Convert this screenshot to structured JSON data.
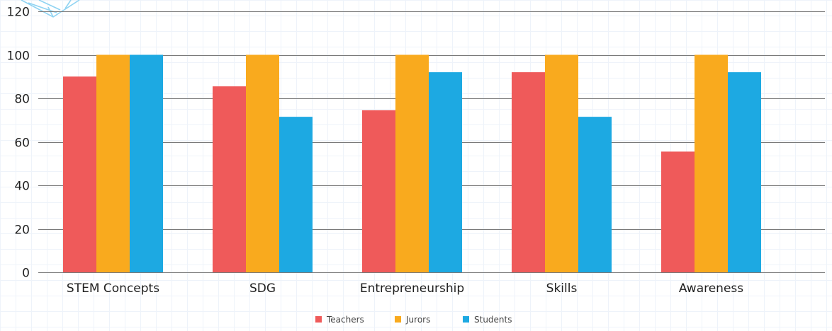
{
  "chart_data": {
    "type": "bar",
    "categories": [
      "STEM Concepts",
      "SDG",
      "Entrepreneurship",
      "Skills",
      "Awareness"
    ],
    "series": [
      {
        "name": "Teachers",
        "color": "#ef5a5a",
        "values": [
          90,
          85.5,
          74.5,
          92,
          55.5
        ]
      },
      {
        "name": "Jurors",
        "color": "#f9aa1e",
        "values": [
          100,
          100,
          100,
          100,
          100
        ]
      },
      {
        "name": "Students",
        "color": "#1da9e2",
        "values": [
          100,
          71.5,
          92,
          71.5,
          92
        ]
      }
    ],
    "ylim": [
      0,
      120
    ],
    "yticks": [
      0,
      20,
      40,
      60,
      80,
      100,
      120
    ],
    "grid": true,
    "legend_position": "bottom-center"
  }
}
